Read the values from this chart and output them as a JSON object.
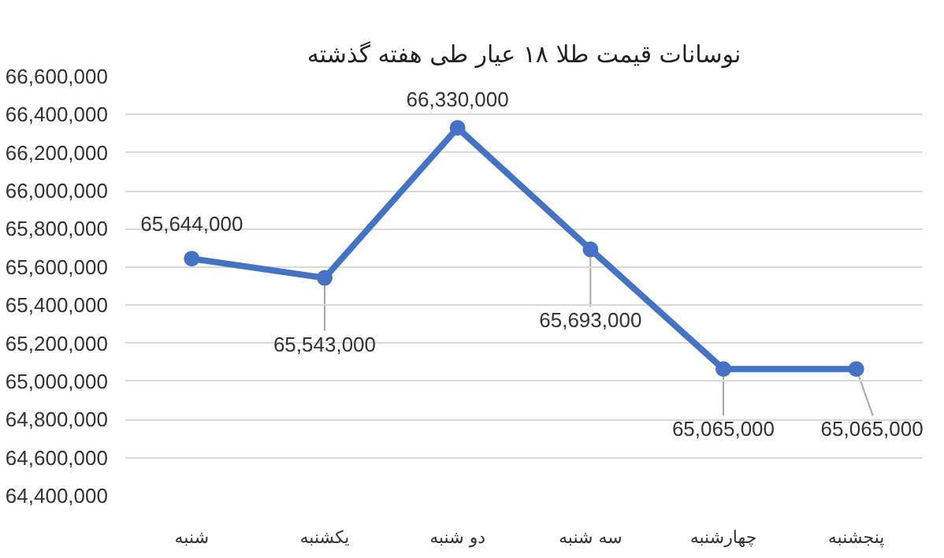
{
  "chart_data": {
    "type": "line",
    "title": "نوسانات قیمت طلا ۱۸ عیار طی هفته گذشته",
    "categories": [
      "شنبه",
      "یکشنبه",
      "دو شنبه",
      "سه شنبه",
      "چهارشنبه",
      "پنجشنبه"
    ],
    "series": [
      {
        "color": "#4472c4",
        "values": [
          65644000,
          65543000,
          66330000,
          65693000,
          65065000,
          65065000
        ],
        "value_labels": [
          "65,644,000",
          "65,543,000",
          "66,330,000",
          "65,693,000",
          "65,065,000",
          "65,065,000"
        ]
      }
    ],
    "ylim": [
      64400000,
      66600000
    ],
    "yticks": [
      {
        "value": 64400000,
        "label": "64,400,000"
      },
      {
        "value": 64600000,
        "label": "64,600,000"
      },
      {
        "value": 64800000,
        "label": "64,800,000"
      },
      {
        "value": 65000000,
        "label": "65,000,000"
      },
      {
        "value": 65200000,
        "label": "65,200,000"
      },
      {
        "value": 65400000,
        "label": "65,400,000"
      },
      {
        "value": 65600000,
        "label": "65,600,000"
      },
      {
        "value": 65800000,
        "label": "65,800,000"
      },
      {
        "value": 66000000,
        "label": "66,000,000"
      },
      {
        "value": 66200000,
        "label": "66,200,000"
      },
      {
        "value": 66400000,
        "label": "66,400,000"
      },
      {
        "value": 66600000,
        "label": "66,600,000"
      }
    ],
    "grid": "y",
    "marker": "circle",
    "line_style": "solid"
  }
}
